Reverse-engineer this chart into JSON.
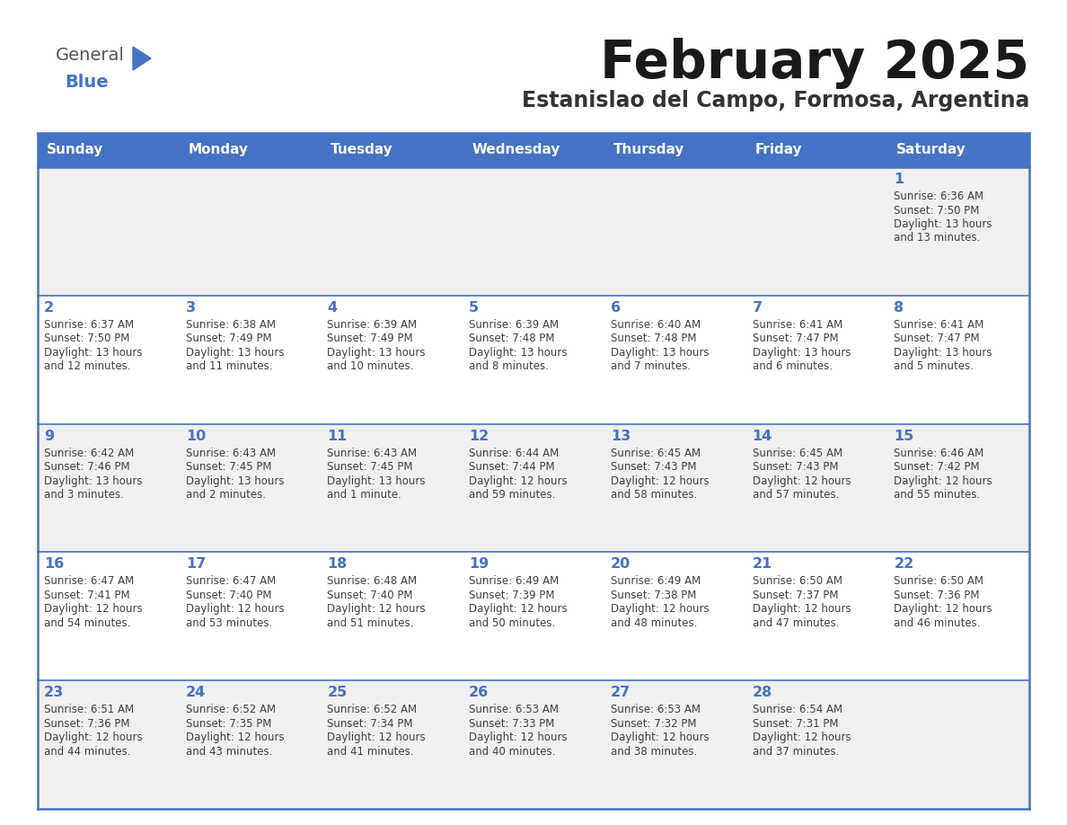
{
  "title": "February 2025",
  "subtitle": "Estanislao del Campo, Formosa, Argentina",
  "header_bg": "#4472C4",
  "header_text": "#FFFFFF",
  "row_bg_odd": "#F0F0F0",
  "row_bg_even": "#FFFFFF",
  "border_color": "#4472C4",
  "text_color": "#404040",
  "days_of_week": [
    "Sunday",
    "Monday",
    "Tuesday",
    "Wednesday",
    "Thursday",
    "Friday",
    "Saturday"
  ],
  "calendar": [
    [
      null,
      null,
      null,
      null,
      null,
      null,
      1
    ],
    [
      2,
      3,
      4,
      5,
      6,
      7,
      8
    ],
    [
      9,
      10,
      11,
      12,
      13,
      14,
      15
    ],
    [
      16,
      17,
      18,
      19,
      20,
      21,
      22
    ],
    [
      23,
      24,
      25,
      26,
      27,
      28,
      null
    ]
  ],
  "cell_data": {
    "1": {
      "sunrise": "6:36 AM",
      "sunset": "7:50 PM",
      "daylight_hours": 13,
      "daylight_minutes": 13
    },
    "2": {
      "sunrise": "6:37 AM",
      "sunset": "7:50 PM",
      "daylight_hours": 13,
      "daylight_minutes": 12
    },
    "3": {
      "sunrise": "6:38 AM",
      "sunset": "7:49 PM",
      "daylight_hours": 13,
      "daylight_minutes": 11
    },
    "4": {
      "sunrise": "6:39 AM",
      "sunset": "7:49 PM",
      "daylight_hours": 13,
      "daylight_minutes": 10
    },
    "5": {
      "sunrise": "6:39 AM",
      "sunset": "7:48 PM",
      "daylight_hours": 13,
      "daylight_minutes": 8
    },
    "6": {
      "sunrise": "6:40 AM",
      "sunset": "7:48 PM",
      "daylight_hours": 13,
      "daylight_minutes": 7
    },
    "7": {
      "sunrise": "6:41 AM",
      "sunset": "7:47 PM",
      "daylight_hours": 13,
      "daylight_minutes": 6
    },
    "8": {
      "sunrise": "6:41 AM",
      "sunset": "7:47 PM",
      "daylight_hours": 13,
      "daylight_minutes": 5
    },
    "9": {
      "sunrise": "6:42 AM",
      "sunset": "7:46 PM",
      "daylight_hours": 13,
      "daylight_minutes": 3
    },
    "10": {
      "sunrise": "6:43 AM",
      "sunset": "7:45 PM",
      "daylight_hours": 13,
      "daylight_minutes": 2
    },
    "11": {
      "sunrise": "6:43 AM",
      "sunset": "7:45 PM",
      "daylight_hours": 13,
      "daylight_minutes": 1
    },
    "12": {
      "sunrise": "6:44 AM",
      "sunset": "7:44 PM",
      "daylight_hours": 12,
      "daylight_minutes": 59
    },
    "13": {
      "sunrise": "6:45 AM",
      "sunset": "7:43 PM",
      "daylight_hours": 12,
      "daylight_minutes": 58
    },
    "14": {
      "sunrise": "6:45 AM",
      "sunset": "7:43 PM",
      "daylight_hours": 12,
      "daylight_minutes": 57
    },
    "15": {
      "sunrise": "6:46 AM",
      "sunset": "7:42 PM",
      "daylight_hours": 12,
      "daylight_minutes": 55
    },
    "16": {
      "sunrise": "6:47 AM",
      "sunset": "7:41 PM",
      "daylight_hours": 12,
      "daylight_minutes": 54
    },
    "17": {
      "sunrise": "6:47 AM",
      "sunset": "7:40 PM",
      "daylight_hours": 12,
      "daylight_minutes": 53
    },
    "18": {
      "sunrise": "6:48 AM",
      "sunset": "7:40 PM",
      "daylight_hours": 12,
      "daylight_minutes": 51
    },
    "19": {
      "sunrise": "6:49 AM",
      "sunset": "7:39 PM",
      "daylight_hours": 12,
      "daylight_minutes": 50
    },
    "20": {
      "sunrise": "6:49 AM",
      "sunset": "7:38 PM",
      "daylight_hours": 12,
      "daylight_minutes": 48
    },
    "21": {
      "sunrise": "6:50 AM",
      "sunset": "7:37 PM",
      "daylight_hours": 12,
      "daylight_minutes": 47
    },
    "22": {
      "sunrise": "6:50 AM",
      "sunset": "7:36 PM",
      "daylight_hours": 12,
      "daylight_minutes": 46
    },
    "23": {
      "sunrise": "6:51 AM",
      "sunset": "7:36 PM",
      "daylight_hours": 12,
      "daylight_minutes": 44
    },
    "24": {
      "sunrise": "6:52 AM",
      "sunset": "7:35 PM",
      "daylight_hours": 12,
      "daylight_minutes": 43
    },
    "25": {
      "sunrise": "6:52 AM",
      "sunset": "7:34 PM",
      "daylight_hours": 12,
      "daylight_minutes": 41
    },
    "26": {
      "sunrise": "6:53 AM",
      "sunset": "7:33 PM",
      "daylight_hours": 12,
      "daylight_minutes": 40
    },
    "27": {
      "sunrise": "6:53 AM",
      "sunset": "7:32 PM",
      "daylight_hours": 12,
      "daylight_minutes": 38
    },
    "28": {
      "sunrise": "6:54 AM",
      "sunset": "7:31 PM",
      "daylight_hours": 12,
      "daylight_minutes": 37
    }
  }
}
